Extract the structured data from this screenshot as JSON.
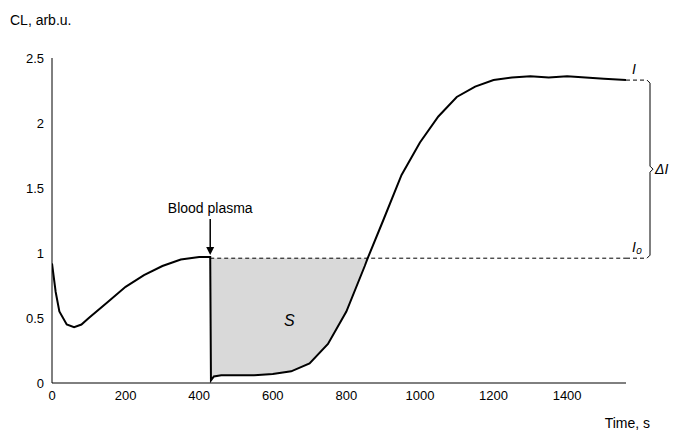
{
  "chart_data": {
    "type": "line",
    "x_label": "Time, s",
    "y_label": "CL, arb.u.",
    "x": [
      0,
      10,
      20,
      40,
      60,
      80,
      100,
      150,
      200,
      250,
      300,
      350,
      400,
      430,
      432,
      440,
      460,
      500,
      550,
      600,
      650,
      700,
      750,
      800,
      850,
      858,
      900,
      950,
      1000,
      1050,
      1100,
      1150,
      1200,
      1250,
      1300,
      1350,
      1400,
      1450,
      1500,
      1560
    ],
    "values": [
      0.92,
      0.7,
      0.55,
      0.45,
      0.43,
      0.45,
      0.5,
      0.62,
      0.74,
      0.83,
      0.9,
      0.95,
      0.97,
      0.97,
      0.02,
      0.05,
      0.06,
      0.06,
      0.06,
      0.07,
      0.09,
      0.15,
      0.3,
      0.55,
      0.9,
      0.96,
      1.25,
      1.6,
      1.85,
      2.05,
      2.2,
      2.28,
      2.33,
      2.35,
      2.36,
      2.35,
      2.36,
      2.35,
      2.34,
      2.33
    ],
    "color": "#000000",
    "xlim": [
      0,
      1560
    ],
    "xticks": [
      0,
      200,
      400,
      600,
      800,
      1000,
      1200,
      1400
    ],
    "ylim": [
      0,
      2.5
    ],
    "yticks": [
      0,
      0.5,
      1,
      1.5,
      2,
      2.5
    ],
    "grid": false,
    "annotations": [
      {
        "text": "Blood plasma",
        "x": 430
      }
    ],
    "shaded_region": {
      "label": "S",
      "x_start": 432,
      "x_end": 858,
      "color": "#d9d9d9"
    },
    "baseline": {
      "label": "I₀",
      "value": 0.96
    },
    "plateau": {
      "label": "I",
      "value": 2.33
    },
    "difference_label": "ΔI"
  }
}
